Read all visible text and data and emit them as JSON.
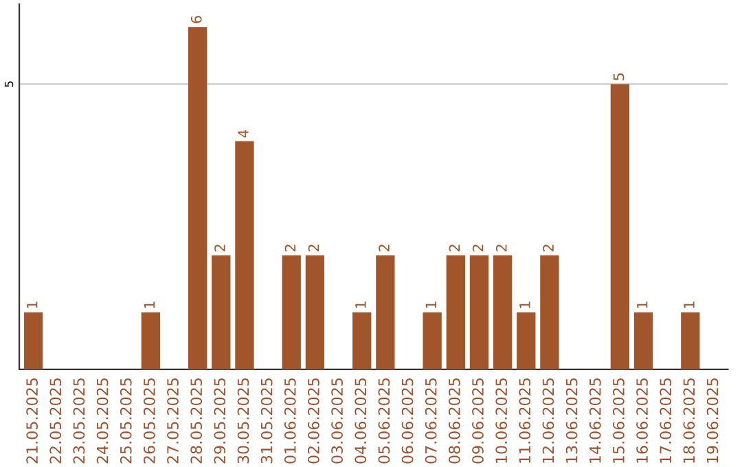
{
  "chart_data": {
    "type": "bar",
    "categories": [
      "21.05.2025",
      "22.05.2025",
      "23.05.2025",
      "24.05.2025",
      "25.05.2025",
      "26.05.2025",
      "27.05.2025",
      "28.05.2025",
      "29.05.2025",
      "30.05.2025",
      "31.05.2025",
      "01.06.2025",
      "02.06.2025",
      "03.06.2025",
      "04.06.2025",
      "05.06.2025",
      "06.06.2025",
      "07.06.2025",
      "08.06.2025",
      "09.06.2025",
      "10.06.2025",
      "11.06.2025",
      "12.06.2025",
      "13.06.2025",
      "14.06.2025",
      "15.06.2025",
      "16.06.2025",
      "17.06.2025",
      "18.06.2025",
      "19.06.2025"
    ],
    "values": [
      1,
      0,
      0,
      0,
      0,
      1,
      0,
      6,
      2,
      4,
      0,
      2,
      2,
      0,
      1,
      2,
      0,
      1,
      2,
      2,
      2,
      1,
      2,
      0,
      0,
      5,
      1,
      0,
      1,
      0
    ],
    "value_labels": [
      "1",
      null,
      null,
      null,
      null,
      "1",
      null,
      "6",
      "2",
      "4",
      null,
      "2",
      "2",
      null,
      "1",
      "2",
      null,
      "1",
      "2",
      "2",
      "2",
      "1",
      "2",
      null,
      null,
      "5",
      "1",
      null,
      "1",
      null
    ],
    "color": "#a0562a",
    "ylim": [
      0,
      6.4
    ],
    "yticks": [
      5
    ],
    "grid": "y"
  }
}
